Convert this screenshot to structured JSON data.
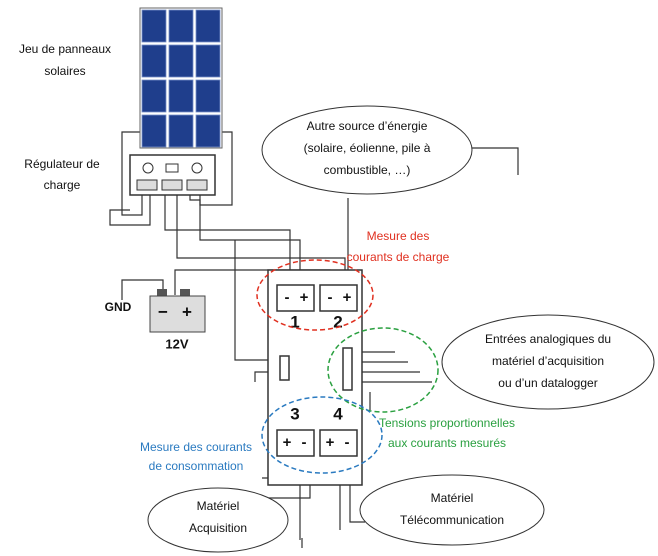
{
  "panels": {
    "label": [
      "Jeu de panneaux",
      "solaires"
    ]
  },
  "regulator": {
    "label": [
      "Régulateur de",
      "charge"
    ]
  },
  "other_source": {
    "label": [
      "Autre source d’énergie",
      "(solaire, éolienne, pile à",
      "combustible, …)"
    ]
  },
  "charge_measure": {
    "label": [
      "Mesure des",
      "courants de charge"
    ]
  },
  "ground": {
    "label": "GND"
  },
  "battery": {
    "minus": "−",
    "plus": "+",
    "label": "12V"
  },
  "channels": [
    {
      "number": "1",
      "left": "-",
      "right": "+"
    },
    {
      "number": "2",
      "left": "-",
      "right": "+"
    },
    {
      "number": "3",
      "left": "+",
      "right": "-"
    },
    {
      "number": "4",
      "left": "+",
      "right": "-"
    }
  ],
  "analog_inputs": {
    "label": [
      "Entrées analogiques du",
      "matériel d’acquisition",
      "ou d’un datalogger"
    ]
  },
  "voltages": {
    "label": [
      "Tensions proportionnelles",
      "aux courants mesurés"
    ]
  },
  "consumption_measure": {
    "label": [
      "Mesure des courants",
      "de consommation"
    ]
  },
  "acquisition": {
    "label": [
      "Matériel",
      "Acquisition"
    ]
  },
  "telecom": {
    "label": [
      "Matériel",
      "Télécommunication"
    ]
  }
}
